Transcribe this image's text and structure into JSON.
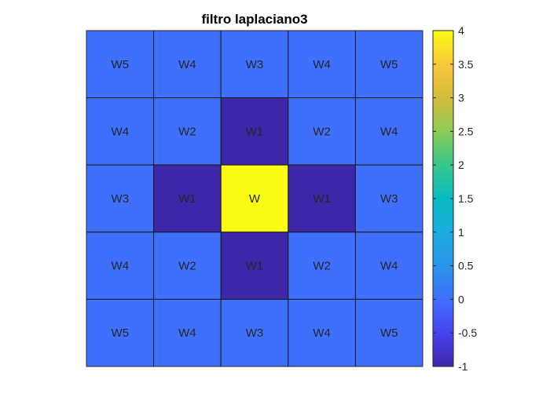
{
  "chart_data": {
    "type": "heatmap",
    "title": "filtro laplaciano3",
    "xlabel": "",
    "ylabel": "",
    "rows": 5,
    "cols": 5,
    "values": [
      [
        0,
        0,
        0,
        0,
        0
      ],
      [
        0,
        0,
        -1,
        0,
        0
      ],
      [
        0,
        -1,
        4,
        -1,
        0
      ],
      [
        0,
        0,
        -1,
        0,
        0
      ],
      [
        0,
        0,
        0,
        0,
        0
      ]
    ],
    "labels": [
      [
        "W5",
        "W4",
        "W3",
        "W4",
        "W5"
      ],
      [
        "W4",
        "W2",
        "W1",
        "W2",
        "W4"
      ],
      [
        "W3",
        "W1",
        "W",
        "W1",
        "W3"
      ],
      [
        "W4",
        "W2",
        "W1",
        "W2",
        "W4"
      ],
      [
        "W5",
        "W4",
        "W3",
        "W4",
        "W5"
      ]
    ],
    "colorbar": {
      "colormap": "parula",
      "limits": [
        -1,
        4
      ],
      "ticks": [
        -1,
        -0.5,
        0,
        0.5,
        1,
        1.5,
        2,
        2.5,
        3,
        3.5,
        4
      ],
      "tick_labels": [
        "-1",
        "-0.5",
        "0",
        "0.5",
        "1",
        "1.5",
        "2",
        "2.5",
        "3",
        "3.5",
        "4"
      ]
    },
    "grid": true,
    "legend": "none"
  }
}
